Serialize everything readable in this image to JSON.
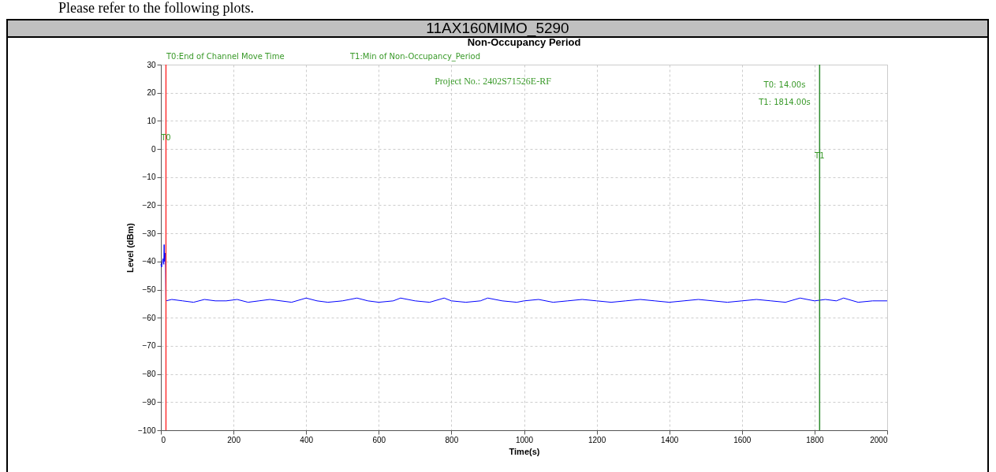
{
  "chart_data": {
    "type": "line",
    "title": "11AX160MIMO_5290",
    "subtitle": "Non-Occupancy Period",
    "xlabel": "Time(s)",
    "ylabel": "Level (dBm)",
    "annotations": [
      "Please refer to the following plots.",
      "T0:End of Channel Move Time",
      "T1:Min of Non-Occupancy_Period",
      "Project No.: 2402S71526E-RF",
      "T0: 14.00s",
      "T1: 1814.00s"
    ],
    "x": [
      0,
      2,
      4,
      6,
      8,
      9,
      10,
      12,
      13,
      14,
      30,
      60,
      90,
      120,
      150,
      180,
      210,
      240,
      270,
      300,
      330,
      360,
      400,
      430,
      460,
      500,
      540,
      570,
      600,
      640,
      660,
      700,
      740,
      780,
      800,
      840,
      880,
      900,
      940,
      980,
      1000,
      1040,
      1080,
      1120,
      1160,
      1200,
      1240,
      1280,
      1320,
      1360,
      1400,
      1440,
      1480,
      1520,
      1560,
      1600,
      1640,
      1680,
      1720,
      1760,
      1800,
      1830,
      1860,
      1880,
      1920,
      1960,
      2000
    ],
    "series": [
      {
        "color": "#0000ff",
        "values": [
          -41,
          -42,
          -40,
          -39,
          -41,
          -34,
          -40,
          -37,
          -42,
          -54,
          -53.5,
          -54,
          -54.5,
          -53.5,
          -54,
          -54,
          -53.5,
          -54.5,
          -54,
          -53.5,
          -54,
          -54.5,
          -53,
          -54,
          -54.5,
          -54,
          -53,
          -54,
          -54.5,
          -54,
          -53,
          -54,
          -54.5,
          -53,
          -54,
          -54.5,
          -54,
          -53,
          -54,
          -54.5,
          -54,
          -53.5,
          -54.5,
          -54,
          -53.5,
          -54,
          -54.5,
          -54,
          -53.5,
          -54,
          -54.5,
          -54,
          -53.5,
          -54,
          -54.5,
          -54,
          -53.5,
          -54,
          -54.5,
          -53,
          -54,
          -53.5,
          -54,
          -53,
          -54.5,
          -54,
          -54
        ]
      }
    ],
    "xlim": [
      0,
      2000
    ],
    "xticks": [
      0,
      200,
      400,
      600,
      800,
      1000,
      1200,
      1400,
      1600,
      1800,
      2000
    ],
    "ylim": [
      -100,
      30
    ],
    "yticks": [
      -100,
      -90,
      -80,
      -70,
      -60,
      -50,
      -40,
      -30,
      -20,
      -10,
      0,
      10,
      20,
      30
    ],
    "grid": true,
    "marker": "none",
    "line_style": "solid",
    "ref_lines": [
      {
        "axis": "x",
        "value": 14,
        "label": "T0",
        "color": "#ff3333"
      },
      {
        "axis": "x",
        "value": 1814,
        "label": "T1",
        "color": "#2e8b2e"
      }
    ]
  }
}
